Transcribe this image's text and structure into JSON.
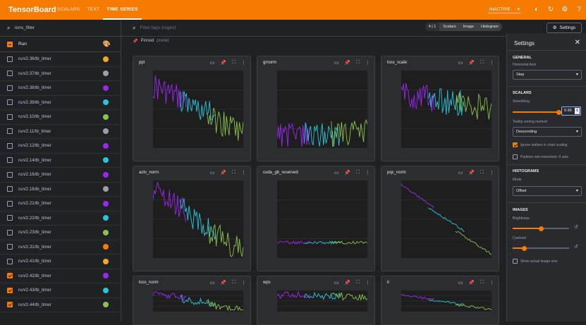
{
  "app": {
    "brand": "TensorBoard",
    "tabs": [
      {
        "label": "SCALARS"
      },
      {
        "label": "TEXT"
      },
      {
        "label": "TIME SERIES"
      }
    ],
    "status": "INACTIVE",
    "accent": "#f57c00"
  },
  "sidebar": {
    "filter_value": "runs_filter",
    "run_header": "Run",
    "runs": [
      {
        "name": "run/2.36/tb_timer",
        "color": "#f9a825",
        "checked": false
      },
      {
        "name": "run/2.37/tb_timer",
        "color": "#9aa0a6",
        "checked": false
      },
      {
        "name": "run/2.38/tb_timer",
        "color": "#9c27f0",
        "checked": false
      },
      {
        "name": "run/2.39/tb_timer",
        "color": "#26c6da",
        "checked": false
      },
      {
        "name": "run/2.10/tb_timer",
        "color": "#8bc34a",
        "checked": false
      },
      {
        "name": "run/2.11/tb_timer",
        "color": "#9aa0a6",
        "checked": false
      },
      {
        "name": "run/2.12/tb_timer",
        "color": "#9c27f0",
        "checked": false
      },
      {
        "name": "run/2.14/tb_timer",
        "color": "#26c6da",
        "checked": false
      },
      {
        "name": "run/2.16/tb_timer",
        "color": "#9c27f0",
        "checked": false
      },
      {
        "name": "run/2.18/tb_timer",
        "color": "#9aa0a6",
        "checked": false
      },
      {
        "name": "run/2.21/tb_timer",
        "color": "#9c27f0",
        "checked": false
      },
      {
        "name": "run/2.22/tb_timer",
        "color": "#26c6da",
        "checked": false
      },
      {
        "name": "run/2.23/tb_timer",
        "color": "#8bc34a",
        "checked": false
      },
      {
        "name": "run/2.31/tb_timer",
        "color": "#f57c00",
        "checked": false
      },
      {
        "name": "run/2.41/tb_timer",
        "color": "#f9a825",
        "checked": false
      },
      {
        "name": "run/2.42/tb_timer",
        "color": "#9c27f0",
        "checked": true
      },
      {
        "name": "run/2.43/tb_timer",
        "color": "#26c6da",
        "checked": true
      },
      {
        "name": "run/2.44/tb_timer",
        "color": "#8bc34a",
        "checked": true
      }
    ]
  },
  "toolbar": {
    "filter_placeholder": "Filter tags (regex)",
    "count": "4 | 1",
    "types": [
      "Scalars",
      "Image",
      "Histogram"
    ],
    "settings_label": "Settings"
  },
  "pinned": {
    "label": "Pinned",
    "sub": "(none)"
  },
  "cards": [
    {
      "title": "ppl"
    },
    {
      "title": "grnorm"
    },
    {
      "title": "loss_scale"
    },
    {
      "title": "actv_norm"
    },
    {
      "title": "cuda_gb_reserved"
    },
    {
      "title": "pqc_norm"
    },
    {
      "title": "loss_norm"
    },
    {
      "title": "wps"
    },
    {
      "title": "lr"
    }
  ],
  "settings": {
    "title": "Settings",
    "general": "GENERAL",
    "horizontal_axis_label": "Horizontal Axis",
    "horizontal_axis_value": "Step",
    "scalars": "SCALARS",
    "smoothing_label": "Smoothing",
    "smoothing_value": "0.99",
    "smoothing": 0.99,
    "tooltip_sort_label": "Tooltip sorting method",
    "tooltip_sort_value": "Descending",
    "ignore_outliers": "Ignore outliers in chart scaling",
    "ignore_outliers_checked": true,
    "partition_label": "Partition non-monotonic X axis",
    "histograms": "HISTOGRAMS",
    "mode_label": "Mode",
    "mode_value": "Offset",
    "images": "IMAGES",
    "brightness_label": "Brightness",
    "brightness": 0.5,
    "contrast_label": "Contrast",
    "contrast": 0.2,
    "show_actual_size": "Show actual image size"
  },
  "icons": {
    "search": "search-icon",
    "palette": "palette-icon",
    "settings": "gear-icon",
    "close": "close-icon",
    "refresh": "refresh-icon",
    "help": "help-icon",
    "theme": "brightness-icon"
  }
}
